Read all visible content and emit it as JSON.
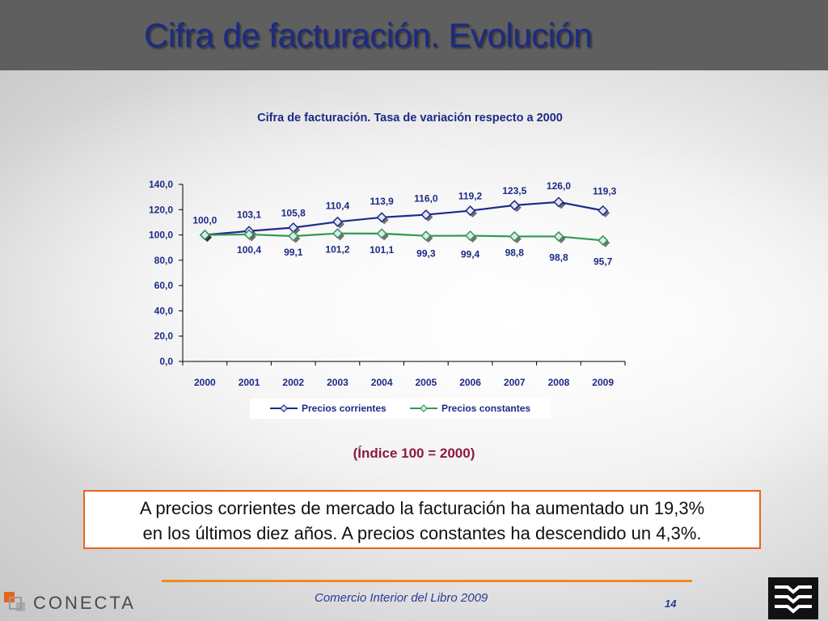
{
  "slide": {
    "title": "Cifra de facturación. Evolución",
    "index_note": "(Índice 100 = 2000)",
    "summary_line1": "A precios corrientes de mercado la facturación ha aumentado un 19,3%",
    "summary_line2": "en los últimos diez años. A precios constantes ha descendido un 4,3%.",
    "footer_text": "Comercio Interior del Libro 2009",
    "page_number": "14",
    "logo_text": "CONECTA"
  },
  "colors": {
    "title": "#1c2a85",
    "series_corrientes": "#1f2a8c",
    "series_constantes": "#2e9a4e",
    "accent_orange": "#e8641c",
    "note": "#8b1a3f"
  },
  "chart_data": {
    "type": "line",
    "title": "Cifra de facturación. Tasa de variación respecto a 2000",
    "categories": [
      "2000",
      "2001",
      "2002",
      "2003",
      "2004",
      "2005",
      "2006",
      "2007",
      "2008",
      "2009"
    ],
    "series": [
      {
        "name": "Precios corrientes",
        "values": [
          100.0,
          103.1,
          105.8,
          110.4,
          113.9,
          116.0,
          119.2,
          123.5,
          126.0,
          119.3
        ],
        "labels": [
          "100,0",
          "103,1",
          "105,8",
          "110,4",
          "113,9",
          "116,0",
          "119,2",
          "123,5",
          "126,0",
          "119,3"
        ]
      },
      {
        "name": "Precios constantes",
        "values": [
          100.0,
          100.4,
          99.1,
          101.2,
          101.1,
          99.3,
          99.4,
          98.8,
          98.8,
          95.7
        ],
        "labels": [
          "",
          "100,4",
          "99,1",
          "101,2",
          "101,1",
          "99,3",
          "99,4",
          "98,8",
          "98,8",
          "95,7"
        ]
      }
    ],
    "ylim": [
      0,
      140
    ],
    "yticks": [
      "0,0",
      "20,0",
      "40,0",
      "60,0",
      "80,0",
      "100,0",
      "120,0",
      "140,0"
    ],
    "grid": false,
    "legend_position": "bottom"
  }
}
